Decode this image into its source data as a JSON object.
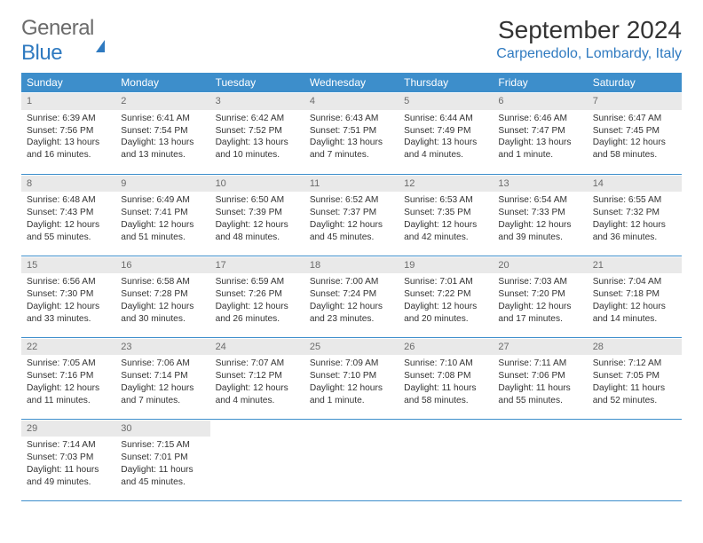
{
  "logo": {
    "part1": "General",
    "part2": "Blue"
  },
  "title": "September 2024",
  "location": "Carpenedolo, Lombardy, Italy",
  "colors": {
    "header_bg": "#3d8ecb",
    "header_text": "#ffffff",
    "daynum_bg": "#e9e9e9",
    "daynum_text": "#6b6b6b",
    "rule": "#3d8ecb",
    "accent": "#2f7ac0",
    "body_text": "#333333"
  },
  "weekdays": [
    "Sunday",
    "Monday",
    "Tuesday",
    "Wednesday",
    "Thursday",
    "Friday",
    "Saturday"
  ],
  "days": [
    {
      "n": "1",
      "sr": "6:39 AM",
      "ss": "7:56 PM",
      "dl": "13 hours and 16 minutes."
    },
    {
      "n": "2",
      "sr": "6:41 AM",
      "ss": "7:54 PM",
      "dl": "13 hours and 13 minutes."
    },
    {
      "n": "3",
      "sr": "6:42 AM",
      "ss": "7:52 PM",
      "dl": "13 hours and 10 minutes."
    },
    {
      "n": "4",
      "sr": "6:43 AM",
      "ss": "7:51 PM",
      "dl": "13 hours and 7 minutes."
    },
    {
      "n": "5",
      "sr": "6:44 AM",
      "ss": "7:49 PM",
      "dl": "13 hours and 4 minutes."
    },
    {
      "n": "6",
      "sr": "6:46 AM",
      "ss": "7:47 PM",
      "dl": "13 hours and 1 minute."
    },
    {
      "n": "7",
      "sr": "6:47 AM",
      "ss": "7:45 PM",
      "dl": "12 hours and 58 minutes."
    },
    {
      "n": "8",
      "sr": "6:48 AM",
      "ss": "7:43 PM",
      "dl": "12 hours and 55 minutes."
    },
    {
      "n": "9",
      "sr": "6:49 AM",
      "ss": "7:41 PM",
      "dl": "12 hours and 51 minutes."
    },
    {
      "n": "10",
      "sr": "6:50 AM",
      "ss": "7:39 PM",
      "dl": "12 hours and 48 minutes."
    },
    {
      "n": "11",
      "sr": "6:52 AM",
      "ss": "7:37 PM",
      "dl": "12 hours and 45 minutes."
    },
    {
      "n": "12",
      "sr": "6:53 AM",
      "ss": "7:35 PM",
      "dl": "12 hours and 42 minutes."
    },
    {
      "n": "13",
      "sr": "6:54 AM",
      "ss": "7:33 PM",
      "dl": "12 hours and 39 minutes."
    },
    {
      "n": "14",
      "sr": "6:55 AM",
      "ss": "7:32 PM",
      "dl": "12 hours and 36 minutes."
    },
    {
      "n": "15",
      "sr": "6:56 AM",
      "ss": "7:30 PM",
      "dl": "12 hours and 33 minutes."
    },
    {
      "n": "16",
      "sr": "6:58 AM",
      "ss": "7:28 PM",
      "dl": "12 hours and 30 minutes."
    },
    {
      "n": "17",
      "sr": "6:59 AM",
      "ss": "7:26 PM",
      "dl": "12 hours and 26 minutes."
    },
    {
      "n": "18",
      "sr": "7:00 AM",
      "ss": "7:24 PM",
      "dl": "12 hours and 23 minutes."
    },
    {
      "n": "19",
      "sr": "7:01 AM",
      "ss": "7:22 PM",
      "dl": "12 hours and 20 minutes."
    },
    {
      "n": "20",
      "sr": "7:03 AM",
      "ss": "7:20 PM",
      "dl": "12 hours and 17 minutes."
    },
    {
      "n": "21",
      "sr": "7:04 AM",
      "ss": "7:18 PM",
      "dl": "12 hours and 14 minutes."
    },
    {
      "n": "22",
      "sr": "7:05 AM",
      "ss": "7:16 PM",
      "dl": "12 hours and 11 minutes."
    },
    {
      "n": "23",
      "sr": "7:06 AM",
      "ss": "7:14 PM",
      "dl": "12 hours and 7 minutes."
    },
    {
      "n": "24",
      "sr": "7:07 AM",
      "ss": "7:12 PM",
      "dl": "12 hours and 4 minutes."
    },
    {
      "n": "25",
      "sr": "7:09 AM",
      "ss": "7:10 PM",
      "dl": "12 hours and 1 minute."
    },
    {
      "n": "26",
      "sr": "7:10 AM",
      "ss": "7:08 PM",
      "dl": "11 hours and 58 minutes."
    },
    {
      "n": "27",
      "sr": "7:11 AM",
      "ss": "7:06 PM",
      "dl": "11 hours and 55 minutes."
    },
    {
      "n": "28",
      "sr": "7:12 AM",
      "ss": "7:05 PM",
      "dl": "11 hours and 52 minutes."
    },
    {
      "n": "29",
      "sr": "7:14 AM",
      "ss": "7:03 PM",
      "dl": "11 hours and 49 minutes."
    },
    {
      "n": "30",
      "sr": "7:15 AM",
      "ss": "7:01 PM",
      "dl": "11 hours and 45 minutes."
    }
  ],
  "labels": {
    "sunrise": "Sunrise:",
    "sunset": "Sunset:",
    "daylight": "Daylight:"
  }
}
